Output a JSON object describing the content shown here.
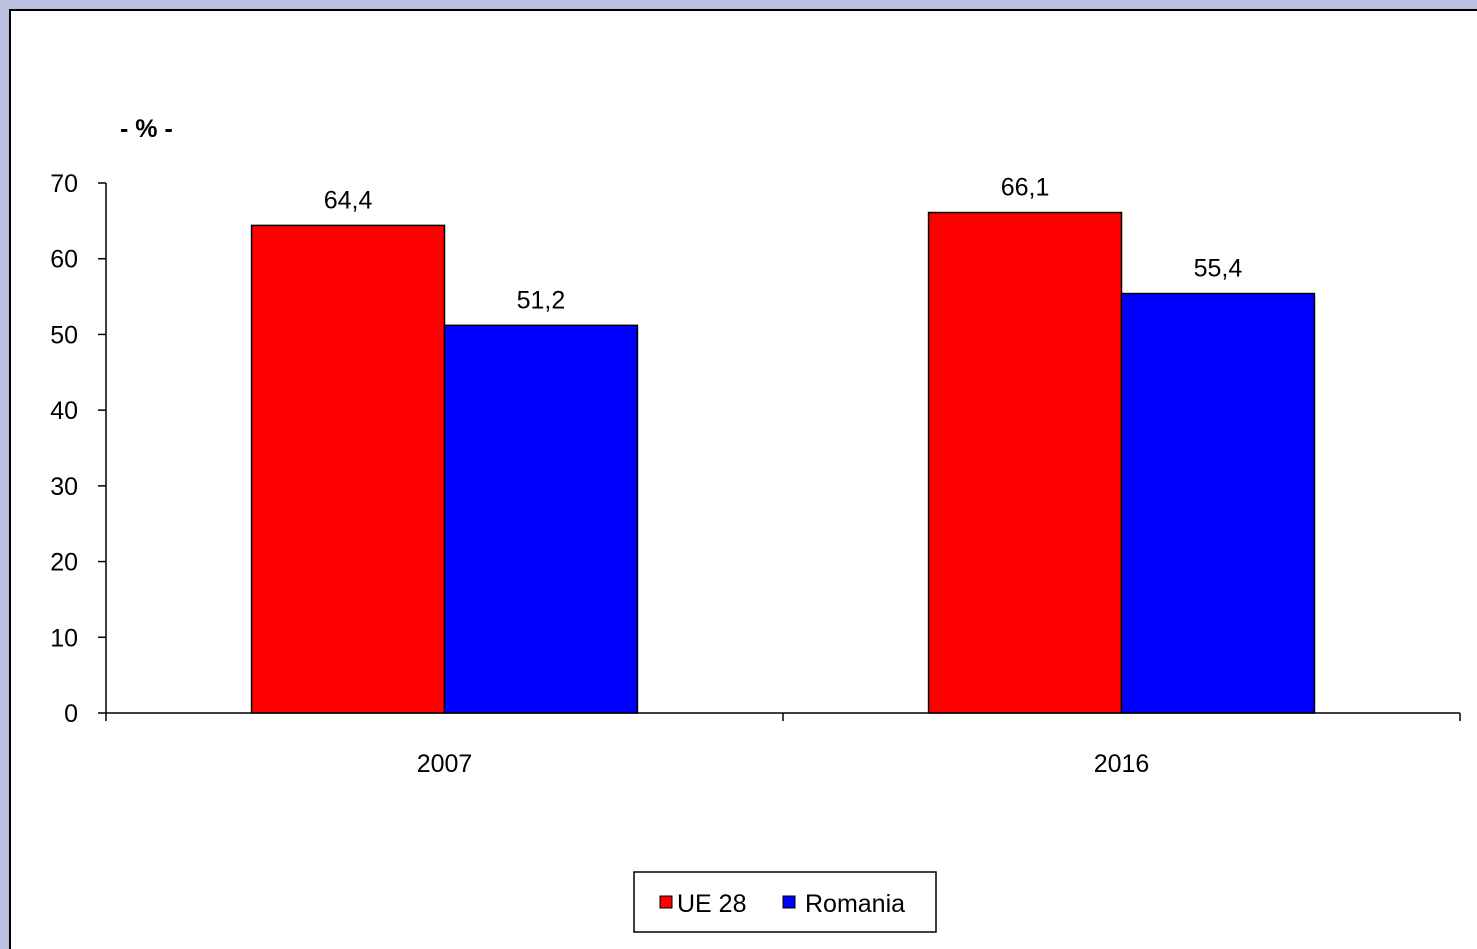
{
  "chart_data": {
    "type": "bar",
    "title": "",
    "xlabel": "",
    "ylabel": "- % -",
    "categories": [
      "2007",
      "2016"
    ],
    "series": [
      {
        "name": "UE 28",
        "values": [
          64.4,
          66.1
        ],
        "labels": [
          "64,4",
          "66,1"
        ],
        "color": "#ff0000"
      },
      {
        "name": "Romania",
        "values": [
          51.2,
          55.4
        ],
        "labels": [
          "51,2",
          "55,4"
        ],
        "color": "#0000ff"
      }
    ],
    "ylim": [
      0,
      70
    ],
    "yticks": [
      "0",
      "10",
      "20",
      "30",
      "40",
      "50",
      "60",
      "70"
    ],
    "grid": false,
    "legend": "bottom-center"
  }
}
